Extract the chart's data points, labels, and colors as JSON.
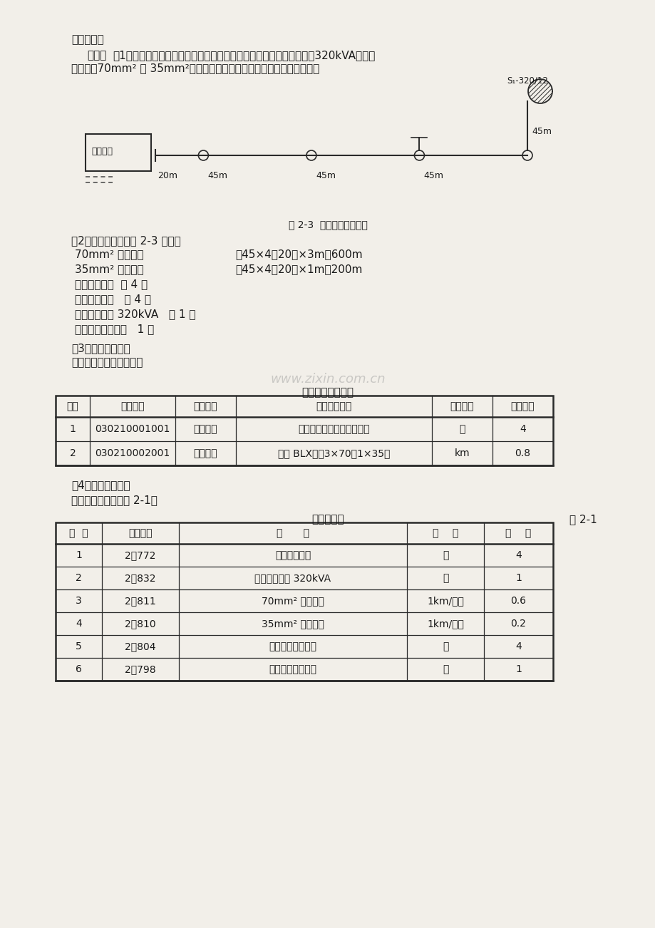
{
  "bg_color": "#f2efe9",
  "text_color": "#1a1a1a",
  "para1": "定额表格。",
  "para2_bold": "【解】",
  "para2_line1": "（1）列概预算项目：概预算项目共分为混凝土电杆、杆上变台组装（320kVA）、导",
  "para2_line2": "线架设（70mm² 和 35mm²）、普通拉线制作安装、进户线铁横担安装。",
  "diagram_label_box": "新建工程",
  "diagram_distances": [
    "20m",
    "45m",
    "45m",
    "45m"
  ],
  "diagram_vertical": "45m",
  "diagram_transformer": "S₁-320/12",
  "diagram_caption": "图 2-3  某外线工程平面图",
  "section2_title": "（2）基本工程量按图 2-3 计算：",
  "calc_lines": [
    [
      "70mm² 导线长度",
      "（45×4＋20）×3m＝600m"
    ],
    [
      "35mm² 导线长度",
      "（45×4＋20）×1m＝200m"
    ],
    [
      "普通拉线制作  共 4 组",
      ""
    ],
    [
      "立混凝土电杆   共 4 根",
      ""
    ],
    [
      "杆上变台组装 320kVA   共 1 台",
      ""
    ],
    [
      "进户线铁横担安装   1 组",
      ""
    ]
  ],
  "section3_title": "（3）清单工程量：",
  "section3_sub": "清单工程量计算见下表：",
  "table1_title": "清单工程量计算表",
  "table1_headers": [
    "序号",
    "项目编码",
    "项目名称",
    "项目特征描述",
    "计量单位",
    "工程数量"
  ],
  "table1_col_widths": [
    48,
    120,
    85,
    275,
    85,
    85
  ],
  "table1_rows": [
    [
      "1",
      "030210001001",
      "电杆组立",
      "混凝土电杆，丘陵山区架设",
      "根",
      "4"
    ],
    [
      "2",
      "030210002001",
      "导线架设",
      "选用 BLX－（3×70＋1×35）",
      "km",
      "0.8"
    ]
  ],
  "section4_title": "（4）定额工程量：",
  "section4_sub": "定额工程量计算见表 2-1。",
  "table2_title": "预算定额表",
  "table2_label": "表 2-1",
  "table2_headers": [
    "序  号",
    "定额编号",
    "项      目",
    "单    位",
    "数    量"
  ],
  "table2_col_widths": [
    65,
    108,
    320,
    108,
    97
  ],
  "table2_rows": [
    [
      "1",
      "2－772",
      "立混凝土电杆",
      "根",
      "4"
    ],
    [
      "2",
      "2－832",
      "杆上变台组装 320kVA",
      "台",
      "1"
    ],
    [
      "3",
      "2－811",
      "70mm² 导线架设",
      "1km/单线",
      "0.6"
    ],
    [
      "4",
      "2－810",
      "35mm² 导线架设",
      "1km/单线",
      "0.2"
    ],
    [
      "5",
      "2－804",
      "普通拉线制作安装",
      "根",
      "4"
    ],
    [
      "6",
      "2－798",
      "进户线铁横担安装",
      "根",
      "1"
    ]
  ],
  "watermark": "www.zixin.com.cn"
}
